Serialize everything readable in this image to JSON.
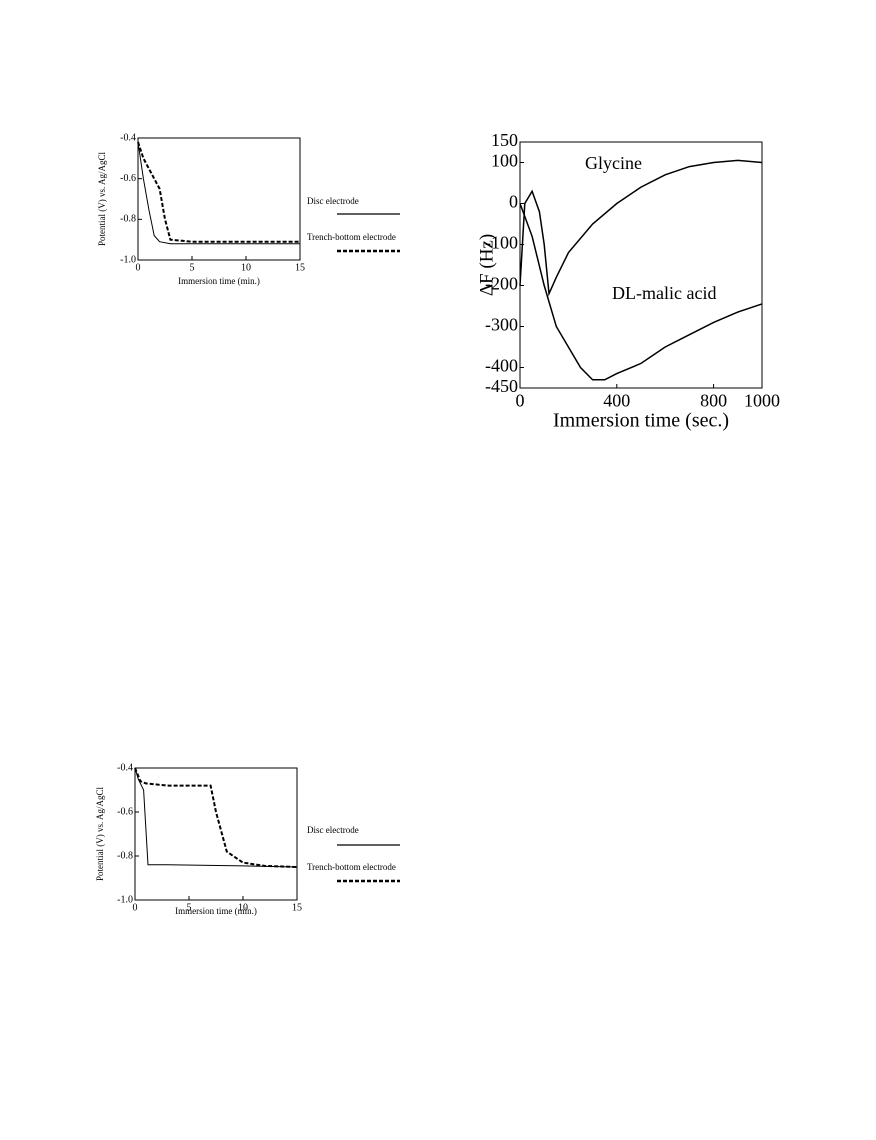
{
  "chart_data": [
    {
      "type": "line",
      "ylabel": "Potential (V) vs. Ag/AgCl",
      "xlabel": "Immersion time (min.)",
      "xlim": [
        0,
        15
      ],
      "xticks": [
        0,
        5,
        10,
        15
      ],
      "ylim": [
        -1,
        -0.4
      ],
      "yticks": [
        -0.4,
        -0.6,
        -0.8,
        {
          "value": -1,
          "label": "-1.0"
        }
      ],
      "series": [
        {
          "name": "Disc electrode",
          "color": "#000000",
          "line_style": "solid",
          "x": [
            0,
            0.5,
            1,
            1.5,
            2,
            3,
            5,
            10,
            15
          ],
          "values": [
            -0.42,
            -0.6,
            -0.75,
            -0.88,
            -0.91,
            -0.92,
            -0.92,
            -0.92,
            -0.92
          ]
        },
        {
          "name": "Trench-bottom electrode",
          "color": "#000000",
          "line_style": "dashed",
          "x": [
            0,
            0.5,
            1,
            2,
            2.5,
            3,
            5,
            10,
            15
          ],
          "values": [
            -0.42,
            -0.5,
            -0.55,
            -0.65,
            -0.8,
            -0.9,
            -0.91,
            -0.91,
            -0.91
          ]
        }
      ]
    },
    {
      "type": "line",
      "ylabel": "ΔF (Hz)",
      "xlabel": "Immersion time (sec.)",
      "xlim": [
        0,
        1000
      ],
      "xticks": [
        0,
        400,
        800,
        1000
      ],
      "ylim": [
        -450,
        150
      ],
      "yticks": [
        150,
        100,
        0,
        -100,
        -200,
        -300,
        -400,
        -450
      ],
      "series": [
        {
          "name": "Glycine",
          "color": "#000000",
          "line_style": "solid",
          "x": [
            0,
            20,
            50,
            80,
            100,
            120,
            150,
            200,
            300,
            400,
            500,
            600,
            700,
            800,
            900,
            1000
          ],
          "values": [
            -200,
            0,
            30,
            -20,
            -100,
            -220,
            -180,
            -120,
            -50,
            0,
            40,
            70,
            90,
            100,
            105,
            100
          ]
        },
        {
          "name": "DL-malic acid",
          "color": "#000000",
          "line_style": "solid",
          "x": [
            0,
            50,
            100,
            150,
            200,
            250,
            300,
            350,
            400,
            500,
            600,
            700,
            800,
            900,
            1000
          ],
          "values": [
            0,
            -80,
            -200,
            -300,
            -350,
            -400,
            -430,
            -430,
            -415,
            -390,
            -350,
            -320,
            -290,
            -265,
            -245
          ]
        }
      ]
    },
    {
      "type": "line",
      "ylabel": "Potential (V) vs. Ag/AgCl",
      "xlabel": "Immersion time (min.)",
      "xlim": [
        0,
        15
      ],
      "xticks": [
        0,
        5,
        10,
        15
      ],
      "ylim": [
        -1,
        -0.4
      ],
      "yticks": [
        -0.4,
        -0.6,
        -0.8,
        {
          "value": -1,
          "label": "-1.0"
        }
      ],
      "series": [
        {
          "name": "Disc electrode",
          "color": "#000000",
          "line_style": "solid",
          "x": [
            0,
            0.3,
            0.8,
            1.2,
            3,
            10,
            15
          ],
          "values": [
            -0.4,
            -0.45,
            -0.5,
            -0.84,
            -0.84,
            -0.845,
            -0.85
          ]
        },
        {
          "name": "Trench-bottom electrode",
          "color": "#000000",
          "line_style": "dashed",
          "x": [
            0,
            0.5,
            1,
            3,
            7,
            7.5,
            8.5,
            10,
            12,
            15
          ],
          "values": [
            -0.4,
            -0.46,
            -0.47,
            -0.48,
            -0.48,
            -0.6,
            -0.78,
            -0.83,
            -0.845,
            -0.85
          ]
        }
      ]
    }
  ]
}
